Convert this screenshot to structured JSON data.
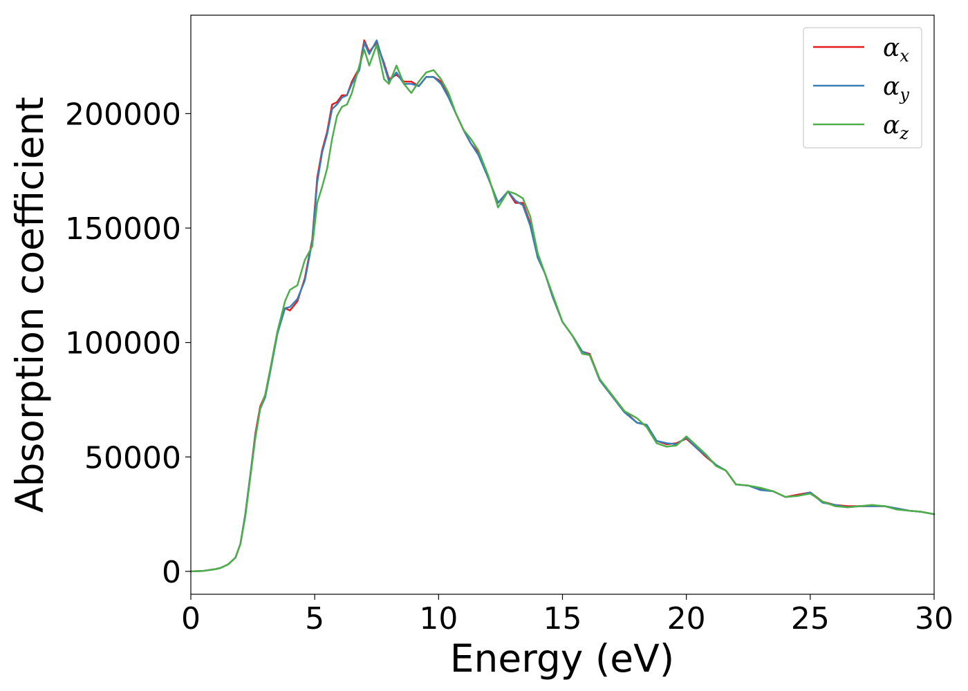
{
  "chart_data": {
    "type": "line",
    "xlabel": "Energy (eV)",
    "ylabel": "Absorption coefficient",
    "xlim": [
      0,
      30
    ],
    "ylim": [
      -10000,
      243000
    ],
    "xticks": [
      0,
      5,
      10,
      15,
      20,
      25,
      30
    ],
    "xtick_labels": [
      "0",
      "5",
      "10",
      "15",
      "20",
      "25",
      "30"
    ],
    "yticks": [
      0,
      50000,
      100000,
      150000,
      200000
    ],
    "ytick_labels": [
      "0",
      "50000",
      "100000",
      "150000",
      "200000"
    ],
    "grid": false,
    "legend_position": "top-right",
    "x": [
      0,
      0.5,
      1,
      1.2,
      1.5,
      1.8,
      2,
      2.2,
      2.4,
      2.6,
      2.8,
      3,
      3.2,
      3.5,
      3.8,
      4,
      4.3,
      4.6,
      4.9,
      5.1,
      5.3,
      5.5,
      5.7,
      5.9,
      6.1,
      6.3,
      6.5,
      6.8,
      7,
      7.2,
      7.5,
      7.8,
      8,
      8.3,
      8.6,
      8.9,
      9.2,
      9.5,
      9.8,
      10.1,
      10.4,
      10.7,
      11,
      11.3,
      11.6,
      12,
      12.4,
      12.8,
      13.1,
      13.4,
      13.7,
      14,
      14.3,
      14.6,
      15,
      15.4,
      15.8,
      16.1,
      16.5,
      17,
      17.5,
      18,
      18.4,
      18.8,
      19.2,
      19.6,
      20,
      20.4,
      20.8,
      21.2,
      21.6,
      22,
      22.5,
      23,
      23.5,
      24,
      24.5,
      25,
      25.5,
      26,
      26.5,
      27,
      27.5,
      28,
      28.5,
      29,
      29.5,
      30
    ],
    "series": [
      {
        "name": "α_x",
        "color": "#e41a1c",
        "values": [
          0,
          200,
          1000,
          1500,
          3000,
          6000,
          12000,
          25000,
          42000,
          60000,
          72000,
          77000,
          88000,
          105000,
          115000,
          114000,
          118000,
          128000,
          145000,
          172000,
          184000,
          192000,
          204000,
          205000,
          208000,
          208000,
          214000,
          220000,
          232000,
          227000,
          231000,
          222000,
          215000,
          217000,
          214000,
          214000,
          212000,
          216000,
          216000,
          214000,
          208000,
          200000,
          193000,
          187000,
          183000,
          172000,
          161000,
          166000,
          161000,
          161000,
          152000,
          138000,
          130000,
          120000,
          109000,
          103000,
          96000,
          95000,
          84000,
          77000,
          70000,
          65000,
          64000,
          57000,
          55500,
          56000,
          58000,
          54000,
          50000,
          46500,
          44000,
          38000,
          37500,
          36000,
          35000,
          32500,
          33500,
          34500,
          30500,
          29000,
          28500,
          28500,
          28500,
          28500,
          27500,
          26500,
          26000,
          25000
        ]
      },
      {
        "name": "α_y",
        "color": "#377eb8",
        "values": [
          0,
          200,
          1000,
          1500,
          3000,
          6000,
          12000,
          25000,
          42000,
          59000,
          71000,
          76000,
          87000,
          104000,
          115000,
          115500,
          119000,
          127000,
          144000,
          170000,
          183000,
          191000,
          202000,
          204000,
          207000,
          208000,
          213000,
          219000,
          231000,
          226000,
          232000,
          221000,
          214000,
          218000,
          213000,
          213000,
          212000,
          216000,
          216000,
          213000,
          207000,
          200000,
          193000,
          187000,
          182000,
          172000,
          161000,
          166000,
          162000,
          160000,
          151000,
          137000,
          130000,
          120000,
          109000,
          103000,
          96000,
          94500,
          83500,
          76500,
          69500,
          65000,
          64000,
          57000,
          56000,
          55500,
          58500,
          54000,
          50500,
          46500,
          44000,
          38000,
          37500,
          35500,
          35000,
          32500,
          33000,
          34500,
          30000,
          29000,
          28000,
          28500,
          28500,
          28500,
          27500,
          26500,
          26000,
          25000
        ]
      },
      {
        "name": "α_z",
        "color": "#4daf4a",
        "values": [
          0,
          200,
          1000,
          1500,
          3000,
          6000,
          12000,
          24000,
          41000,
          58000,
          71000,
          77000,
          88000,
          105000,
          118000,
          123000,
          125000,
          136000,
          142000,
          161000,
          168000,
          176000,
          189000,
          199000,
          203000,
          204000,
          209000,
          221000,
          228000,
          221000,
          230000,
          215000,
          213000,
          221000,
          213000,
          209000,
          214000,
          218000,
          219000,
          215000,
          209000,
          200000,
          193000,
          189000,
          184000,
          173000,
          159000,
          166000,
          165000,
          163000,
          155000,
          139000,
          130000,
          121000,
          109000,
          103000,
          95000,
          94500,
          84000,
          77000,
          70000,
          67000,
          63000,
          56000,
          54500,
          55000,
          59000,
          55000,
          51000,
          46000,
          44000,
          38000,
          37500,
          36500,
          35000,
          32500,
          33000,
          34000,
          30500,
          28500,
          28000,
          28500,
          29000,
          28500,
          27000,
          26500,
          26000,
          25000
        ]
      }
    ]
  },
  "legend": {
    "items": [
      {
        "symbol": "α",
        "subscript": "x",
        "color": "#e41a1c"
      },
      {
        "symbol": "α",
        "subscript": "y",
        "color": "#377eb8"
      },
      {
        "symbol": "α",
        "subscript": "z",
        "color": "#4daf4a"
      }
    ]
  }
}
